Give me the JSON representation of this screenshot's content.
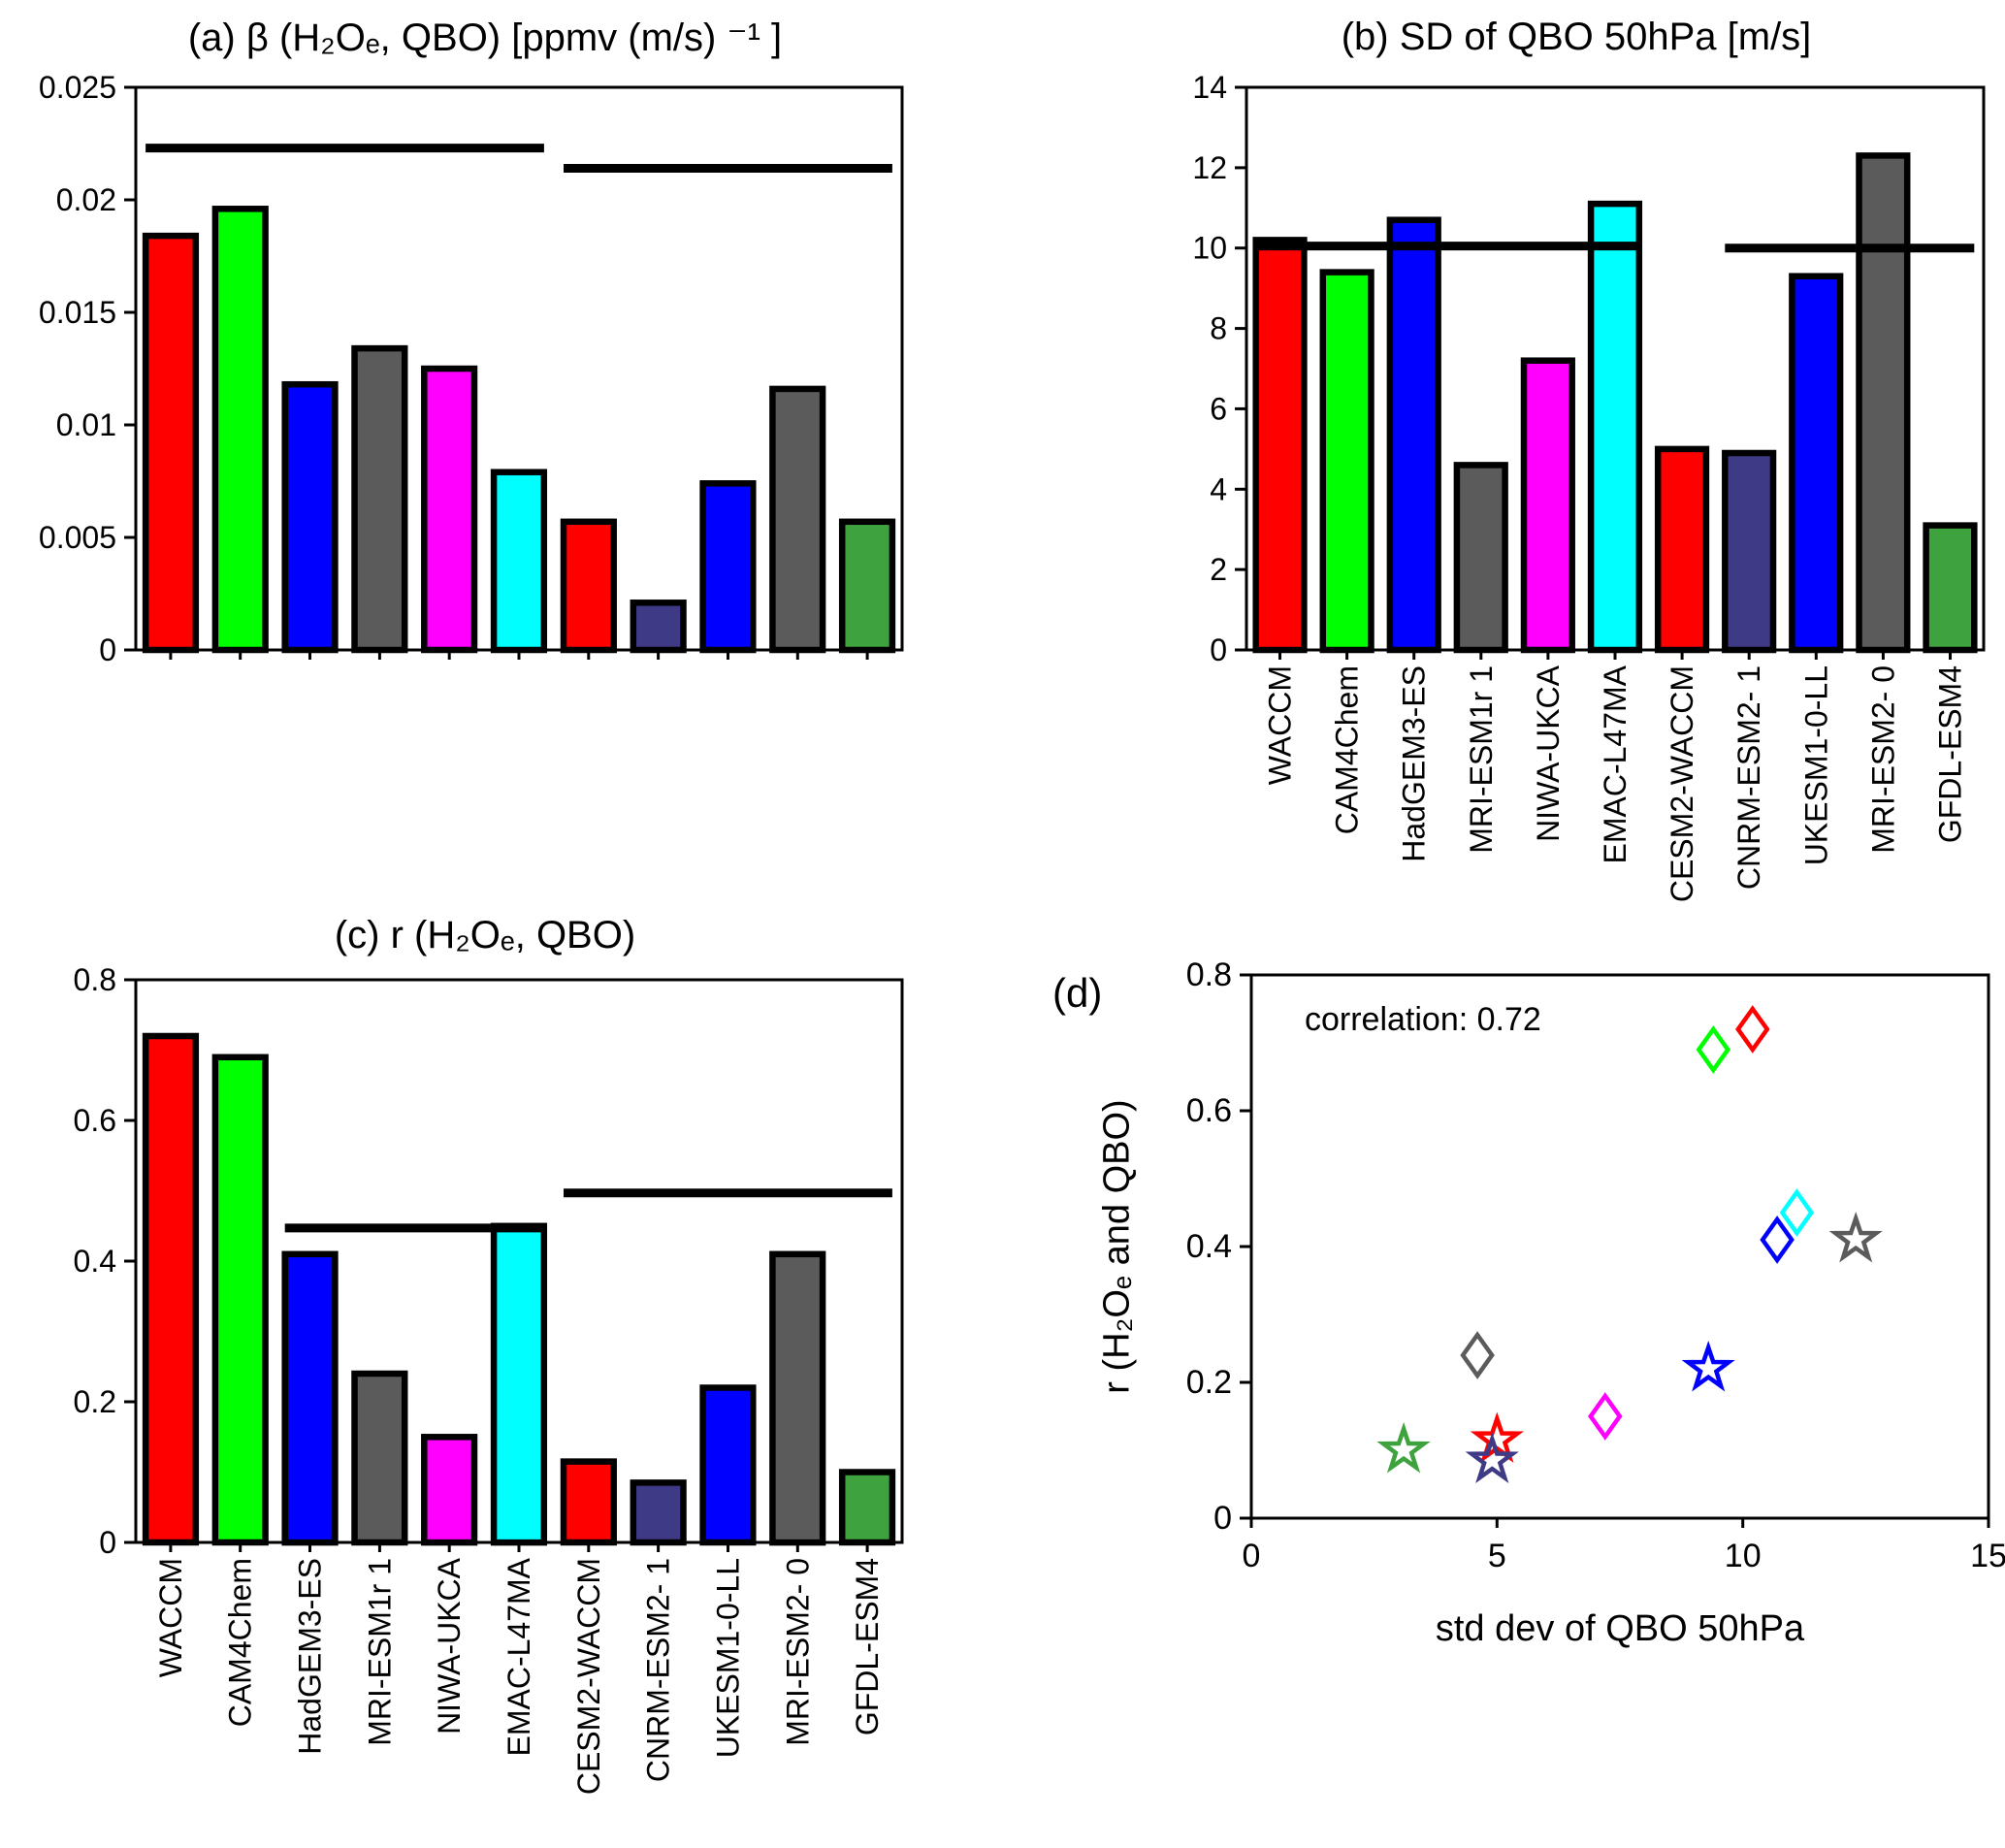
{
  "models": [
    {
      "label": "WACCM",
      "color": "#ff0000"
    },
    {
      "label": "CAM4Chem",
      "color": "#00ff00"
    },
    {
      "label": "HadGEM3-ES",
      "color": "#0000ff"
    },
    {
      "label": "MRI-ESM1r 1",
      "color": "#5b5b5b"
    },
    {
      "label": "NIWA-UKCA",
      "color": "#ff00ff"
    },
    {
      "label": "EMAC-L47MA",
      "color": "#00ffff"
    },
    {
      "label": "CESM2-WACCM",
      "color": "#ff0000"
    },
    {
      "label": "CNRM-ESM2- 1",
      "color": "#3f3a85"
    },
    {
      "label": "UKESM1-0-LL",
      "color": "#0000ff"
    },
    {
      "label": "MRI-ESM2- 0",
      "color": "#5b5b5b"
    },
    {
      "label": "GFDL-ESM4",
      "color": "#3ea33e"
    }
  ],
  "chart_data": [
    {
      "id": "a",
      "type": "bar",
      "title": "(a) β (H₂Oₑ, QBO) [ppmv (m/s) ⁻¹ ]",
      "categories": [
        "WACCM",
        "CAM4Chem",
        "HadGEM3-ES",
        "MRI-ESM1r 1",
        "NIWA-UKCA",
        "EMAC-L47MA",
        "CESM2-WACCM",
        "CNRM-ESM2- 1",
        "UKESM1-0-LL",
        "MRI-ESM2- 0",
        "GFDL-ESM4"
      ],
      "values": [
        0.0184,
        0.0196,
        0.0118,
        0.0134,
        0.0125,
        0.0079,
        0.0057,
        0.0021,
        0.0074,
        0.0116,
        0.0057
      ],
      "ylim": [
        0,
        0.025
      ],
      "yticks": [
        0,
        0.005,
        0.01,
        0.015,
        0.02,
        0.025
      ],
      "ref_lines": [
        {
          "y": 0.0223,
          "from_bar": 0,
          "to_bar": 5
        },
        {
          "y": 0.0214,
          "from_bar": 6,
          "to_bar": 10
        }
      ],
      "show_xlabels": false,
      "grid": false
    },
    {
      "id": "b",
      "type": "bar",
      "title": "(b) SD of QBO 50hPa [m/s]",
      "categories": [
        "WACCM",
        "CAM4Chem",
        "HadGEM3-ES",
        "MRI-ESM1r 1",
        "NIWA-UKCA",
        "EMAC-L47MA",
        "CESM2-WACCM",
        "CNRM-ESM2- 1",
        "UKESM1-0-LL",
        "MRI-ESM2- 0",
        "GFDL-ESM4"
      ],
      "values": [
        10.2,
        9.4,
        10.7,
        4.6,
        7.2,
        11.1,
        5.0,
        4.9,
        9.3,
        12.3,
        3.1
      ],
      "ylim": [
        0,
        14
      ],
      "yticks": [
        0,
        2,
        4,
        6,
        8,
        10,
        12,
        14
      ],
      "ref_lines": [
        {
          "y": 10.05,
          "from_bar": 0,
          "to_bar": 5
        },
        {
          "y": 10.0,
          "from_bar": 7,
          "to_bar": 10
        }
      ],
      "show_xlabels": true,
      "grid": false
    },
    {
      "id": "c",
      "type": "bar",
      "title": "(c) r (H₂Oₑ, QBO)",
      "categories": [
        "WACCM",
        "CAM4Chem",
        "HadGEM3-ES",
        "MRI-ESM1r 1",
        "NIWA-UKCA",
        "EMAC-L47MA",
        "CESM2-WACCM",
        "CNRM-ESM2- 1",
        "UKESM1-0-LL",
        "MRI-ESM2- 0",
        "GFDL-ESM4"
      ],
      "values": [
        0.72,
        0.69,
        0.41,
        0.24,
        0.15,
        0.45,
        0.115,
        0.085,
        0.22,
        0.41,
        0.1
      ],
      "ylim": [
        0,
        0.8
      ],
      "yticks": [
        0,
        0.2,
        0.4,
        0.6,
        0.8
      ],
      "ref_lines": [
        {
          "y": 0.447,
          "from_bar": 2,
          "to_bar": 5
        },
        {
          "y": 0.497,
          "from_bar": 6,
          "to_bar": 10
        }
      ],
      "show_xlabels": true,
      "grid": false
    },
    {
      "id": "d",
      "type": "scatter",
      "panel_label": "(d)",
      "annotation": "correlation: 0.72",
      "xlabel": "std dev of QBO 50hPa",
      "ylabel": "r (H₂Oₑ and QBO)",
      "xlim": [
        0,
        15
      ],
      "ylim": [
        0,
        0.8
      ],
      "xticks": [
        0,
        5,
        10,
        15
      ],
      "yticks": [
        0,
        0.2,
        0.4,
        0.6,
        0.8
      ],
      "legend_position": "none",
      "points": [
        {
          "model": "WACCM",
          "x": 10.2,
          "y": 0.72,
          "marker": "diamond",
          "color": "#ff0000"
        },
        {
          "model": "CAM4Chem",
          "x": 9.4,
          "y": 0.69,
          "marker": "diamond",
          "color": "#00ff00"
        },
        {
          "model": "HadGEM3-ES",
          "x": 10.7,
          "y": 0.41,
          "marker": "diamond",
          "color": "#0000ff"
        },
        {
          "model": "MRI-ESM1r 1",
          "x": 4.6,
          "y": 0.24,
          "marker": "diamond",
          "color": "#5b5b5b"
        },
        {
          "model": "NIWA-UKCA",
          "x": 7.2,
          "y": 0.15,
          "marker": "diamond",
          "color": "#ff00ff"
        },
        {
          "model": "EMAC-L47MA",
          "x": 11.1,
          "y": 0.45,
          "marker": "diamond",
          "color": "#00ffff"
        },
        {
          "model": "CESM2-WACCM",
          "x": 5.0,
          "y": 0.115,
          "marker": "star",
          "color": "#ff0000"
        },
        {
          "model": "CNRM-ESM2- 1",
          "x": 4.9,
          "y": 0.085,
          "marker": "star",
          "color": "#3f3a85"
        },
        {
          "model": "UKESM1-0-LL",
          "x": 9.3,
          "y": 0.22,
          "marker": "star",
          "color": "#0000ff"
        },
        {
          "model": "MRI-ESM2- 0",
          "x": 12.3,
          "y": 0.41,
          "marker": "star",
          "color": "#5b5b5b"
        },
        {
          "model": "GFDL-ESM4",
          "x": 3.1,
          "y": 0.1,
          "marker": "star",
          "color": "#3ea33e"
        }
      ]
    }
  ]
}
